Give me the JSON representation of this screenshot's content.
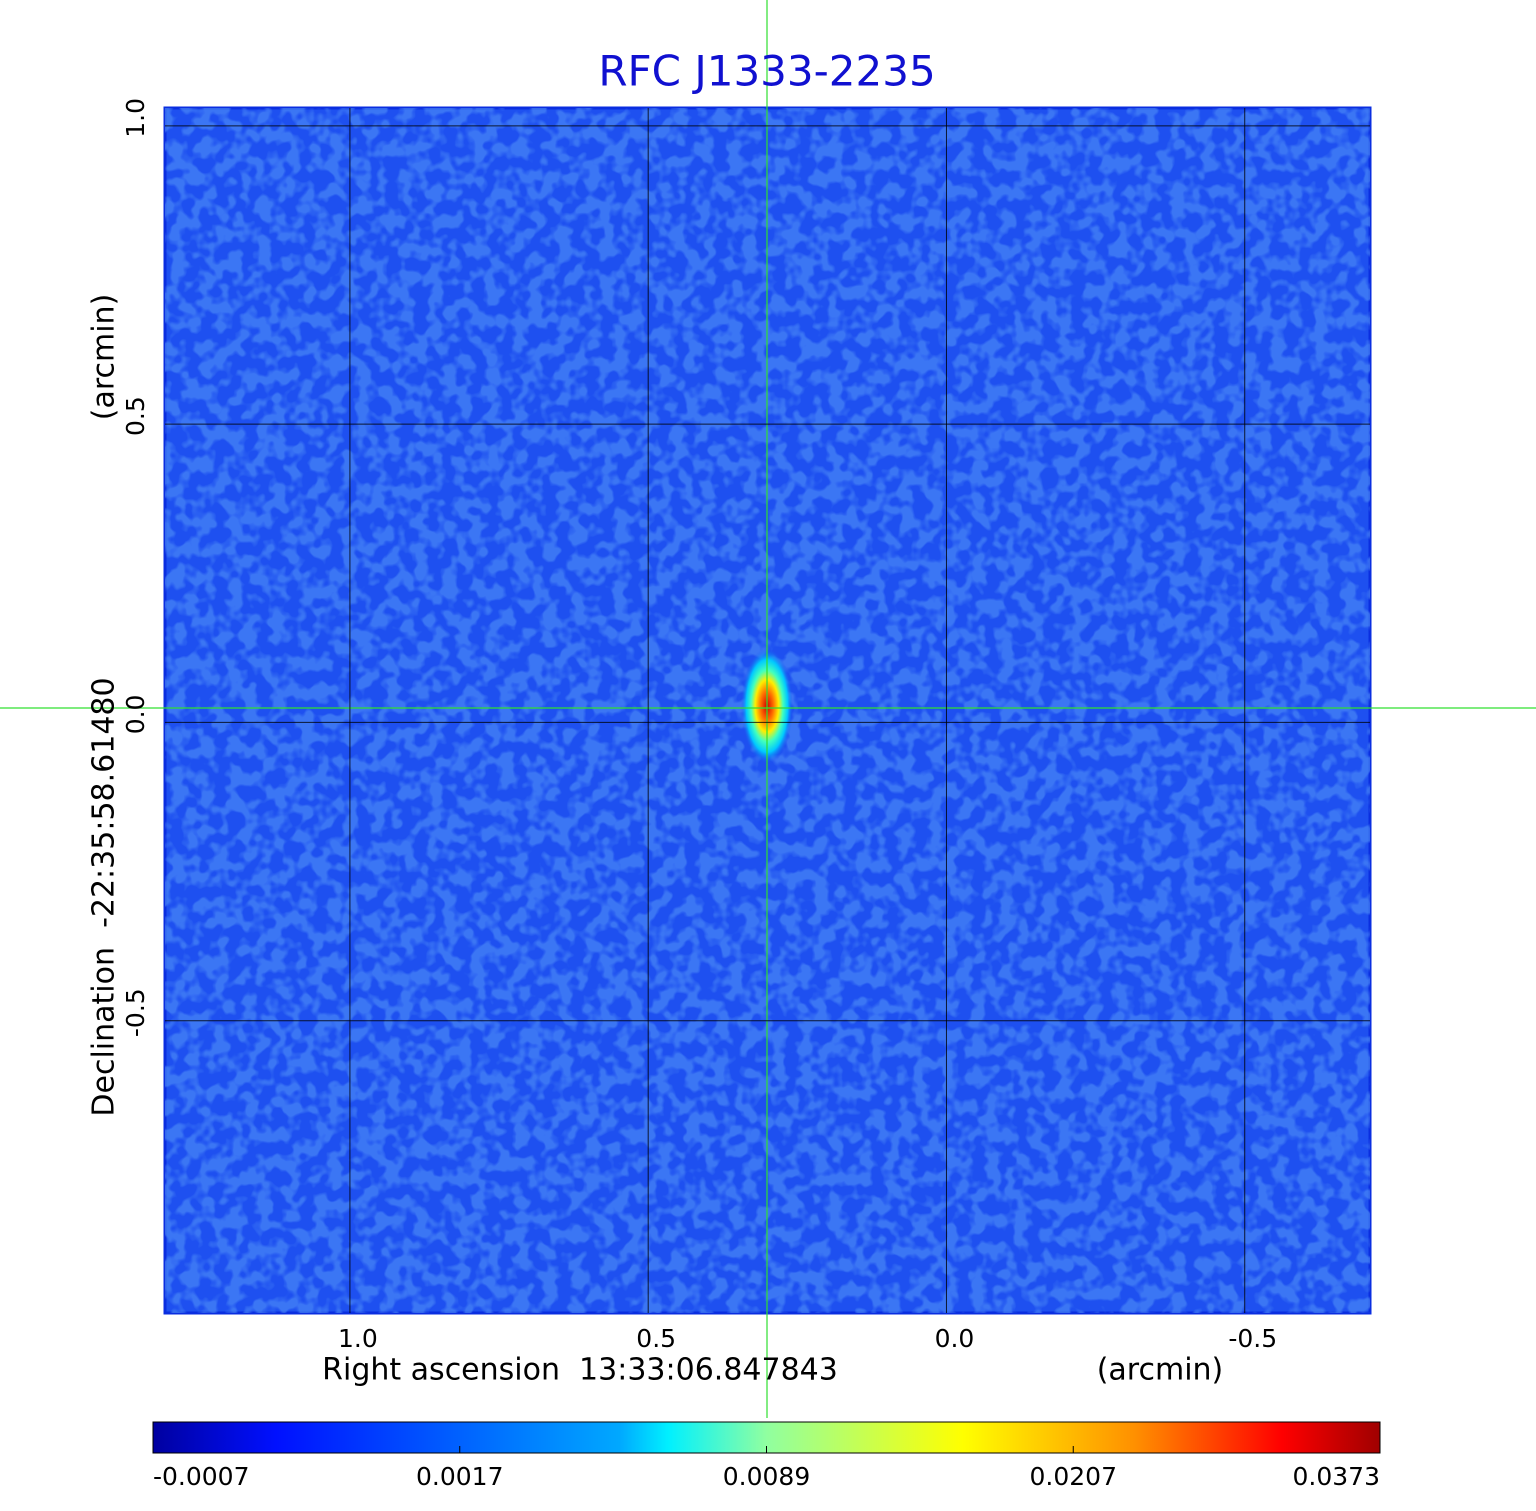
{
  "chart_data": {
    "type": "image",
    "title": "RFC J1333-2235",
    "xlabel": "Right ascension  13:33:06.847843",
    "xunit": "(arcmin)",
    "ylabel": "Declination  -22:35:58.61480",
    "yunit": "(arcmin)",
    "xlim": [
      1.31,
      -0.71
    ],
    "ylim": [
      -0.99,
      1.03
    ],
    "xticks": [
      {
        "value": 1,
        "label": "1.0"
      },
      {
        "value": 0.5,
        "label": "0.5"
      },
      {
        "value": 0,
        "label": "0.0"
      },
      {
        "value": -0.5,
        "label": "-0.5"
      }
    ],
    "yticks": [
      {
        "value": 1,
        "label": "1.0"
      },
      {
        "value": 0.5,
        "label": "0.5"
      },
      {
        "value": 0,
        "label": "0.0"
      },
      {
        "value": -0.5,
        "label": "-0.5"
      }
    ],
    "grid": true,
    "colorbar_ticks": [
      -0.0007,
      0.0017,
      0.0089,
      0.0207,
      0.0373
    ]
  }
}
